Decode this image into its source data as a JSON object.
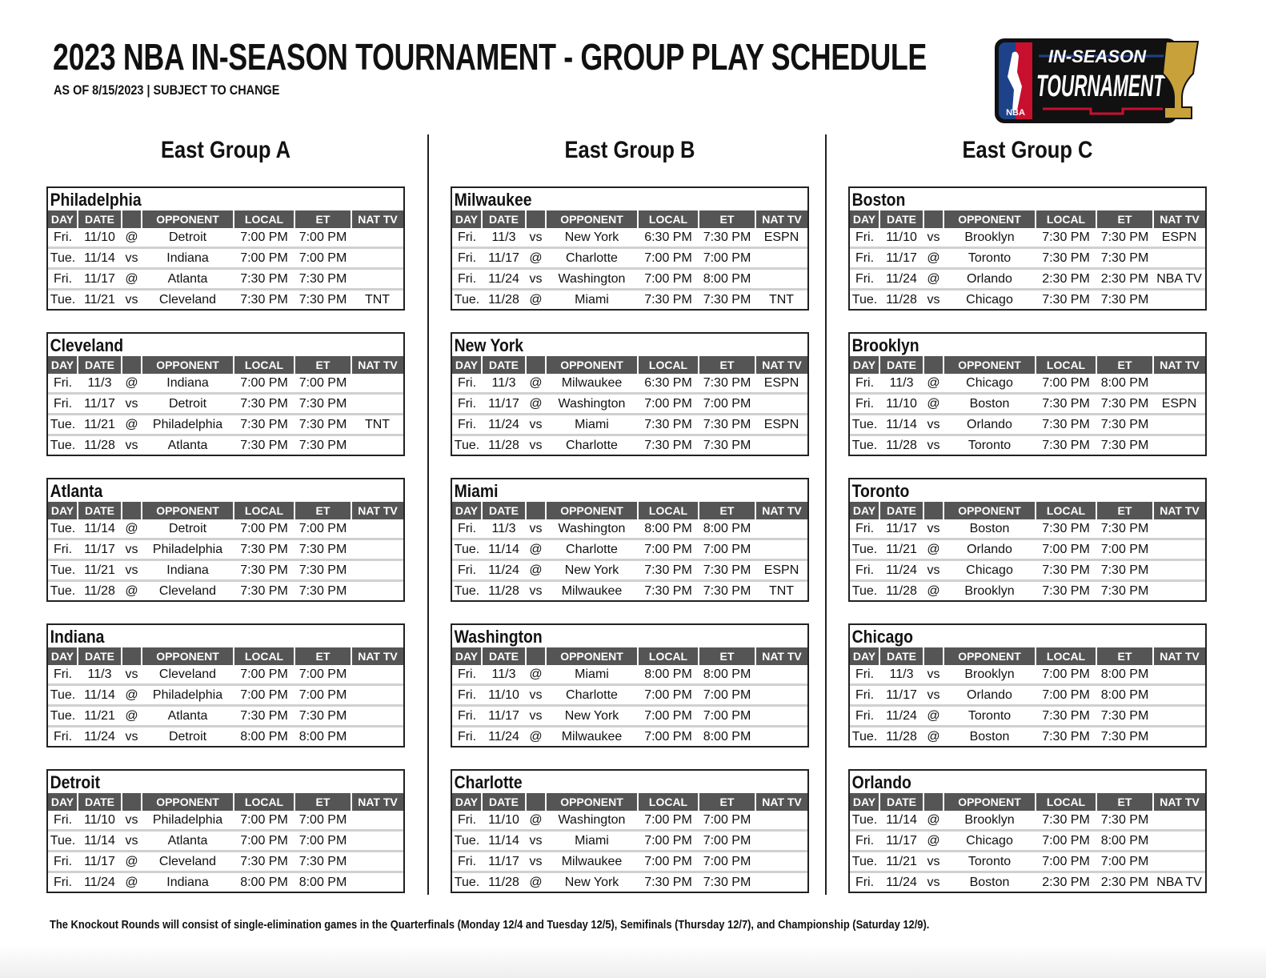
{
  "header": {
    "title": "2023 NBA IN-SEASON TOURNAMENT - GROUP PLAY SCHEDULE",
    "subtitle": "AS OF 8/15/2023  |  SUBJECT TO CHANGE",
    "logo_text": [
      "NBA",
      "IN-SEASON",
      "TOURNAMENT"
    ]
  },
  "columns": [
    "DAY",
    "DATE",
    "",
    "OPPONENT",
    "LOCAL",
    "ET",
    "NAT TV"
  ],
  "groups": [
    {
      "title": "East Group A",
      "teams": [
        {
          "name": "Philadelphia",
          "games": [
            [
              "Fri.",
              "11/10",
              "@",
              "Detroit",
              "7:00 PM",
              "7:00 PM",
              ""
            ],
            [
              "Tue.",
              "11/14",
              "vs",
              "Indiana",
              "7:00 PM",
              "7:00 PM",
              ""
            ],
            [
              "Fri.",
              "11/17",
              "@",
              "Atlanta",
              "7:30 PM",
              "7:30 PM",
              ""
            ],
            [
              "Tue.",
              "11/21",
              "vs",
              "Cleveland",
              "7:30 PM",
              "7:30 PM",
              "TNT"
            ]
          ]
        },
        {
          "name": "Cleveland",
          "games": [
            [
              "Fri.",
              "11/3",
              "@",
              "Indiana",
              "7:00 PM",
              "7:00 PM",
              ""
            ],
            [
              "Fri.",
              "11/17",
              "vs",
              "Detroit",
              "7:30 PM",
              "7:30 PM",
              ""
            ],
            [
              "Tue.",
              "11/21",
              "@",
              "Philadelphia",
              "7:30 PM",
              "7:30 PM",
              "TNT"
            ],
            [
              "Tue.",
              "11/28",
              "vs",
              "Atlanta",
              "7:30 PM",
              "7:30 PM",
              ""
            ]
          ]
        },
        {
          "name": "Atlanta",
          "games": [
            [
              "Tue.",
              "11/14",
              "@",
              "Detroit",
              "7:00 PM",
              "7:00 PM",
              ""
            ],
            [
              "Fri.",
              "11/17",
              "vs",
              "Philadelphia",
              "7:30 PM",
              "7:30 PM",
              ""
            ],
            [
              "Tue.",
              "11/21",
              "vs",
              "Indiana",
              "7:30 PM",
              "7:30 PM",
              ""
            ],
            [
              "Tue.",
              "11/28",
              "@",
              "Cleveland",
              "7:30 PM",
              "7:30 PM",
              ""
            ]
          ]
        },
        {
          "name": "Indiana",
          "games": [
            [
              "Fri.",
              "11/3",
              "vs",
              "Cleveland",
              "7:00 PM",
              "7:00 PM",
              ""
            ],
            [
              "Tue.",
              "11/14",
              "@",
              "Philadelphia",
              "7:00 PM",
              "7:00 PM",
              ""
            ],
            [
              "Tue.",
              "11/21",
              "@",
              "Atlanta",
              "7:30 PM",
              "7:30 PM",
              ""
            ],
            [
              "Fri.",
              "11/24",
              "vs",
              "Detroit",
              "8:00 PM",
              "8:00 PM",
              ""
            ]
          ]
        },
        {
          "name": "Detroit",
          "games": [
            [
              "Fri.",
              "11/10",
              "vs",
              "Philadelphia",
              "7:00 PM",
              "7:00 PM",
              ""
            ],
            [
              "Tue.",
              "11/14",
              "vs",
              "Atlanta",
              "7:00 PM",
              "7:00 PM",
              ""
            ],
            [
              "Fri.",
              "11/17",
              "@",
              "Cleveland",
              "7:30 PM",
              "7:30 PM",
              ""
            ],
            [
              "Fri.",
              "11/24",
              "@",
              "Indiana",
              "8:00 PM",
              "8:00 PM",
              ""
            ]
          ]
        }
      ]
    },
    {
      "title": "East Group B",
      "teams": [
        {
          "name": "Milwaukee",
          "games": [
            [
              "Fri.",
              "11/3",
              "vs",
              "New York",
              "6:30 PM",
              "7:30 PM",
              "ESPN"
            ],
            [
              "Fri.",
              "11/17",
              "@",
              "Charlotte",
              "7:00 PM",
              "7:00 PM",
              ""
            ],
            [
              "Fri.",
              "11/24",
              "vs",
              "Washington",
              "7:00 PM",
              "8:00 PM",
              ""
            ],
            [
              "Tue.",
              "11/28",
              "@",
              "Miami",
              "7:30 PM",
              "7:30 PM",
              "TNT"
            ]
          ]
        },
        {
          "name": "New York",
          "games": [
            [
              "Fri.",
              "11/3",
              "@",
              "Milwaukee",
              "6:30 PM",
              "7:30 PM",
              "ESPN"
            ],
            [
              "Fri.",
              "11/17",
              "@",
              "Washington",
              "7:00 PM",
              "7:00 PM",
              ""
            ],
            [
              "Fri.",
              "11/24",
              "vs",
              "Miami",
              "7:30 PM",
              "7:30 PM",
              "ESPN"
            ],
            [
              "Tue.",
              "11/28",
              "vs",
              "Charlotte",
              "7:30 PM",
              "7:30 PM",
              ""
            ]
          ]
        },
        {
          "name": "Miami",
          "games": [
            [
              "Fri.",
              "11/3",
              "vs",
              "Washington",
              "8:00 PM",
              "8:00 PM",
              ""
            ],
            [
              "Tue.",
              "11/14",
              "@",
              "Charlotte",
              "7:00 PM",
              "7:00 PM",
              ""
            ],
            [
              "Fri.",
              "11/24",
              "@",
              "New York",
              "7:30 PM",
              "7:30 PM",
              "ESPN"
            ],
            [
              "Tue.",
              "11/28",
              "vs",
              "Milwaukee",
              "7:30 PM",
              "7:30 PM",
              "TNT"
            ]
          ]
        },
        {
          "name": "Washington",
          "games": [
            [
              "Fri.",
              "11/3",
              "@",
              "Miami",
              "8:00 PM",
              "8:00 PM",
              ""
            ],
            [
              "Fri.",
              "11/10",
              "vs",
              "Charlotte",
              "7:00 PM",
              "7:00 PM",
              ""
            ],
            [
              "Fri.",
              "11/17",
              "vs",
              "New York",
              "7:00 PM",
              "7:00 PM",
              ""
            ],
            [
              "Fri.",
              "11/24",
              "@",
              "Milwaukee",
              "7:00 PM",
              "8:00 PM",
              ""
            ]
          ]
        },
        {
          "name": "Charlotte",
          "games": [
            [
              "Fri.",
              "11/10",
              "@",
              "Washington",
              "7:00 PM",
              "7:00 PM",
              ""
            ],
            [
              "Tue.",
              "11/14",
              "vs",
              "Miami",
              "7:00 PM",
              "7:00 PM",
              ""
            ],
            [
              "Fri.",
              "11/17",
              "vs",
              "Milwaukee",
              "7:00 PM",
              "7:00 PM",
              ""
            ],
            [
              "Tue.",
              "11/28",
              "@",
              "New York",
              "7:30 PM",
              "7:30 PM",
              ""
            ]
          ]
        }
      ]
    },
    {
      "title": "East Group C",
      "teams": [
        {
          "name": "Boston",
          "games": [
            [
              "Fri.",
              "11/10",
              "vs",
              "Brooklyn",
              "7:30 PM",
              "7:30 PM",
              "ESPN"
            ],
            [
              "Fri.",
              "11/17",
              "@",
              "Toronto",
              "7:30 PM",
              "7:30 PM",
              ""
            ],
            [
              "Fri.",
              "11/24",
              "@",
              "Orlando",
              "2:30 PM",
              "2:30 PM",
              "NBA TV"
            ],
            [
              "Tue.",
              "11/28",
              "vs",
              "Chicago",
              "7:30 PM",
              "7:30 PM",
              ""
            ]
          ]
        },
        {
          "name": "Brooklyn",
          "games": [
            [
              "Fri.",
              "11/3",
              "@",
              "Chicago",
              "7:00 PM",
              "8:00 PM",
              ""
            ],
            [
              "Fri.",
              "11/10",
              "@",
              "Boston",
              "7:30 PM",
              "7:30 PM",
              "ESPN"
            ],
            [
              "Tue.",
              "11/14",
              "vs",
              "Orlando",
              "7:30 PM",
              "7:30 PM",
              ""
            ],
            [
              "Tue.",
              "11/28",
              "vs",
              "Toronto",
              "7:30 PM",
              "7:30 PM",
              ""
            ]
          ]
        },
        {
          "name": "Toronto",
          "games": [
            [
              "Fri.",
              "11/17",
              "vs",
              "Boston",
              "7:30 PM",
              "7:30 PM",
              ""
            ],
            [
              "Tue.",
              "11/21",
              "@",
              "Orlando",
              "7:00 PM",
              "7:00 PM",
              ""
            ],
            [
              "Fri.",
              "11/24",
              "vs",
              "Chicago",
              "7:30 PM",
              "7:30 PM",
              ""
            ],
            [
              "Tue.",
              "11/28",
              "@",
              "Brooklyn",
              "7:30 PM",
              "7:30 PM",
              ""
            ]
          ]
        },
        {
          "name": "Chicago",
          "games": [
            [
              "Fri.",
              "11/3",
              "vs",
              "Brooklyn",
              "7:00 PM",
              "8:00 PM",
              ""
            ],
            [
              "Fri.",
              "11/17",
              "vs",
              "Orlando",
              "7:00 PM",
              "8:00 PM",
              ""
            ],
            [
              "Fri.",
              "11/24",
              "@",
              "Toronto",
              "7:30 PM",
              "7:30 PM",
              ""
            ],
            [
              "Tue.",
              "11/28",
              "@",
              "Boston",
              "7:30 PM",
              "7:30 PM",
              ""
            ]
          ]
        },
        {
          "name": "Orlando",
          "games": [
            [
              "Tue.",
              "11/14",
              "@",
              "Brooklyn",
              "7:30 PM",
              "7:30 PM",
              ""
            ],
            [
              "Fri.",
              "11/17",
              "@",
              "Chicago",
              "7:00 PM",
              "8:00 PM",
              ""
            ],
            [
              "Tue.",
              "11/21",
              "vs",
              "Toronto",
              "7:00 PM",
              "7:00 PM",
              ""
            ],
            [
              "Fri.",
              "11/24",
              "vs",
              "Boston",
              "2:30 PM",
              "2:30 PM",
              "NBA TV"
            ]
          ]
        }
      ]
    }
  ],
  "footer": "The Knockout Rounds will consist of single-elimination games in the Quarterfinals (Monday 12/4 and Tuesday 12/5), Semifinals (Thursday 12/7), and Championship (Saturday 12/9).",
  "colors": {
    "header_bg": "#555555",
    "row_divider": "#d0d0d0",
    "logo_blue": "#1d428a",
    "logo_red": "#c8102e",
    "trophy_gold": "#c9a13b"
  }
}
